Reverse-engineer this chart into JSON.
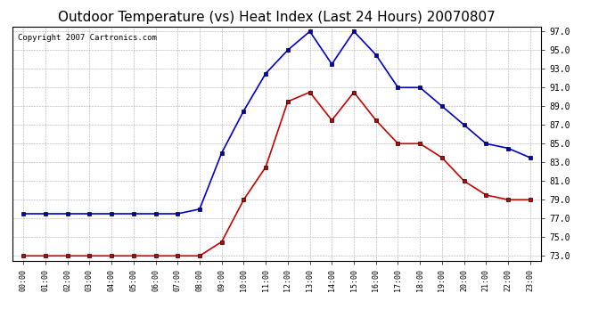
{
  "title": "Outdoor Temperature (vs) Heat Index (Last 24 Hours) 20070807",
  "copyright_text": "Copyright 2007 Cartronics.com",
  "hours": [
    "00:00",
    "01:00",
    "02:00",
    "03:00",
    "04:00",
    "05:00",
    "06:00",
    "07:00",
    "08:00",
    "09:00",
    "10:00",
    "11:00",
    "12:00",
    "13:00",
    "14:00",
    "15:00",
    "16:00",
    "17:00",
    "18:00",
    "19:00",
    "20:00",
    "21:00",
    "22:00",
    "23:00"
  ],
  "blue_temp": [
    77.5,
    77.5,
    77.5,
    77.5,
    77.5,
    77.5,
    77.5,
    77.5,
    78.0,
    84.0,
    88.5,
    92.5,
    95.0,
    97.0,
    93.5,
    97.0,
    94.5,
    91.0,
    91.0,
    89.0,
    87.0,
    85.0,
    84.5,
    83.5
  ],
  "red_heat": [
    73.0,
    73.0,
    73.0,
    73.0,
    73.0,
    73.0,
    73.0,
    73.0,
    73.0,
    74.5,
    79.0,
    82.5,
    89.5,
    90.5,
    87.5,
    90.5,
    87.5,
    85.0,
    85.0,
    83.5,
    81.0,
    79.5,
    79.0,
    79.0
  ],
  "blue_color": "#0000CC",
  "red_color": "#CC0000",
  "bg_color": "#FFFFFF",
  "plot_bg_color": "#FFFFFF",
  "grid_color": "#AAAAAA",
  "ylim_min": 73.0,
  "ylim_max": 97.0,
  "ytick_step": 2.0,
  "title_fontsize": 11,
  "copyright_fontsize": 6.5,
  "marker": "s",
  "marker_size": 2.5,
  "linewidth": 1.2
}
